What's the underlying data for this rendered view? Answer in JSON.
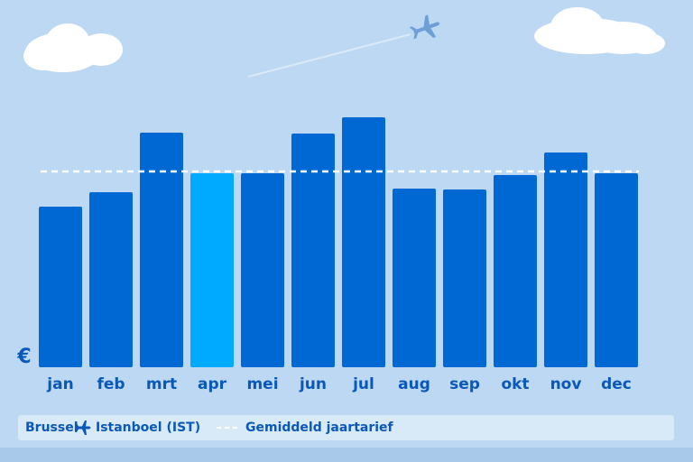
{
  "chart_data": {
    "type": "bar",
    "categories": [
      "jan",
      "feb",
      "mrt",
      "apr",
      "mei",
      "jun",
      "jul",
      "aug",
      "sep",
      "okt",
      "nov",
      "dec"
    ],
    "values": [
      178,
      194,
      260,
      215,
      215,
      259,
      277,
      198,
      197,
      213,
      238,
      215
    ],
    "colors": [
      "#0068d2",
      "#0068d2",
      "#0068d2",
      "#00aaff",
      "#0068d2",
      "#0068d2",
      "#0068d2",
      "#0068d2",
      "#0068d2",
      "#0068d2",
      "#0068d2",
      "#0068d2"
    ],
    "ylim": [
      0,
      300
    ],
    "y_label": "€",
    "average": {
      "name": "Gemiddeld jaartarief",
      "value": 217,
      "color": "#ffffff"
    },
    "route": {
      "from": "Brussel",
      "to": "Istanboel (IST)"
    }
  }
}
